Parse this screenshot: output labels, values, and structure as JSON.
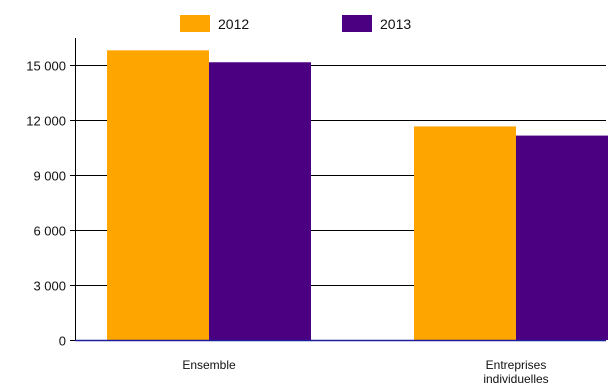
{
  "chart_data": {
    "type": "bar",
    "categories": [
      "Ensemble",
      "Entreprises individuelles"
    ],
    "category_lines": [
      [
        "Ensemble"
      ],
      [
        "Entreprises",
        "individuelles"
      ]
    ],
    "series": [
      {
        "name": "2012",
        "color": "#FFA500",
        "values": [
          15800,
          11650
        ]
      },
      {
        "name": "2013",
        "color": "#4B0082",
        "values": [
          15150,
          11150
        ]
      }
    ],
    "y_ticks": [
      0,
      3000,
      6000,
      9000,
      12000,
      15000
    ],
    "y_tick_labels": [
      "0",
      "3 000",
      "6 000",
      "9 000",
      "12 000",
      "15 000"
    ],
    "ylim": [
      0,
      16500
    ],
    "grid": true,
    "legend_position": "top-center",
    "title": "",
    "xlabel": "",
    "ylabel": ""
  }
}
